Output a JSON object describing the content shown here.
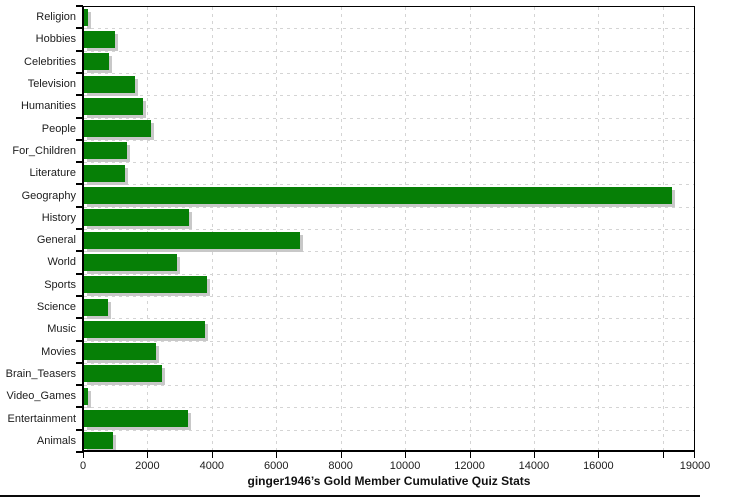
{
  "chart_data": {
    "type": "bar",
    "orientation": "horizontal",
    "title": "ginger1946’s Gold Member Cumulative Quiz Stats",
    "categories": [
      "Religion",
      "Hobbies",
      "Celebrities",
      "Television",
      "Humanities",
      "People",
      "For_Children",
      "Literature",
      "Geography",
      "History",
      "General",
      "World",
      "Sports",
      "Science",
      "Music",
      "Movies",
      "Brain_Teasers",
      "Video_Games",
      "Entertainment",
      "Animals"
    ],
    "values": [
      130,
      960,
      780,
      1590,
      1840,
      2090,
      1340,
      1280,
      18240,
      3270,
      6720,
      2900,
      3830,
      750,
      3770,
      2240,
      2430,
      125,
      3240,
      900
    ],
    "xlabel": "",
    "ylabel": "",
    "xlim": [
      0,
      19000
    ],
    "x_tick_interval": 2000,
    "x_axis_labels": [
      {
        "value": 0,
        "label": "0"
      },
      {
        "value": 2000,
        "label": "2000"
      },
      {
        "value": 4000,
        "label": "4000"
      },
      {
        "value": 6000,
        "label": "6000"
      },
      {
        "value": 8000,
        "label": "8000"
      },
      {
        "value": 10000,
        "label": "10000"
      },
      {
        "value": 12000,
        "label": "12000"
      },
      {
        "value": 14000,
        "label": "14000"
      },
      {
        "value": 16000,
        "label": "16000"
      },
      {
        "value": 19000,
        "label": "19000"
      }
    ],
    "grid": true,
    "grid_style": "dashed",
    "legend": false,
    "title_position": "bottom",
    "colors": {
      "bar": "#067f06",
      "bar_shadow": "#c8c8c8",
      "grid": "#d4d4d4",
      "axis": "#000000",
      "text": "#1c1c1c",
      "background": "#ffffff"
    }
  }
}
